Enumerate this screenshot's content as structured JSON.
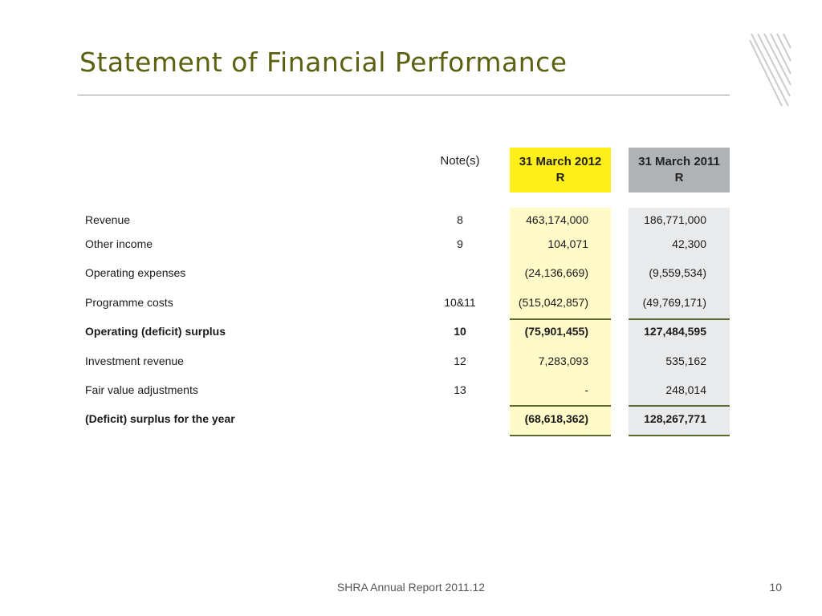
{
  "slide": {
    "title": "Statement of Financial Performance",
    "footer_text": "SHRA Annual Report 2011.12",
    "page_number": "10"
  },
  "table": {
    "headers": {
      "notes": "Note(s)",
      "year1_line1": "31 March 2012",
      "year1_line2": "R",
      "year2_line1": "31 March 2011",
      "year2_line2": "R"
    },
    "rows": [
      {
        "label": "Revenue",
        "note": "8",
        "y2012": "463,174,000",
        "y2011": "186,771,000",
        "bold": false
      },
      {
        "label": "Other income",
        "note": "9",
        "y2012": "104,071",
        "y2011": "42,300",
        "bold": false
      },
      {
        "label": "Operating expenses",
        "note": "",
        "y2012": "(24,136,669)",
        "y2011": "(9,559,534)",
        "bold": false
      },
      {
        "label": "Programme costs",
        "note": "10&11",
        "y2012": "(515,042,857)",
        "y2011": "(49,769,171)",
        "bold": false
      },
      {
        "label": "Operating (deficit) surplus",
        "note": "10",
        "y2012": "(75,901,455)",
        "y2011": "127,484,595",
        "bold": true
      },
      {
        "label": "Investment revenue",
        "note": "12",
        "y2012": "7,283,093",
        "y2011": "535,162",
        "bold": false
      },
      {
        "label": "Fair value adjustments",
        "note": "13",
        "y2012": "-",
        "y2011": "248,014",
        "bold": false
      },
      {
        "label": "(Deficit) surplus for the year",
        "note": "",
        "y2012": "(68,618,362)",
        "y2011": "128,267,771",
        "bold": true
      }
    ]
  },
  "colors": {
    "title": "#5b6110",
    "highlight_2012_header": "#ffef1a",
    "highlight_2012_column": "#fffac8",
    "header_2011": "#b0b3b6",
    "column_2011": "#e8eaec",
    "rule": "#5b6a2a"
  }
}
